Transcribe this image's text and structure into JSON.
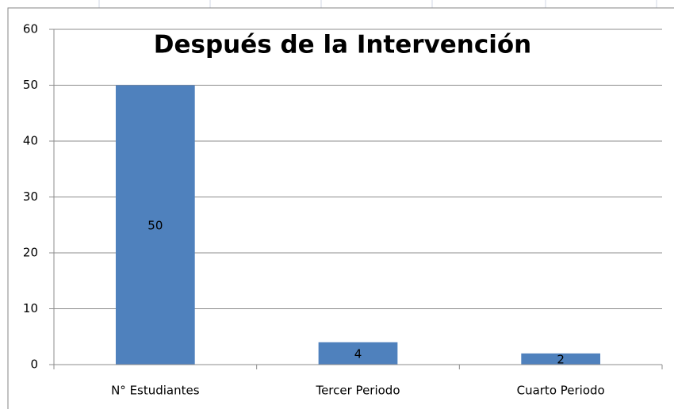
{
  "chart_data": {
    "type": "bar",
    "title": "Después de la Intervención",
    "categories": [
      "N° Estudiantes",
      "Tercer Periodo",
      "Cuarto Periodo"
    ],
    "values": [
      50,
      4,
      2
    ],
    "color": "#4f81bd",
    "ylim": [
      0,
      60
    ],
    "yticks": [
      0,
      10,
      20,
      30,
      40,
      50,
      60
    ],
    "grid": true
  }
}
